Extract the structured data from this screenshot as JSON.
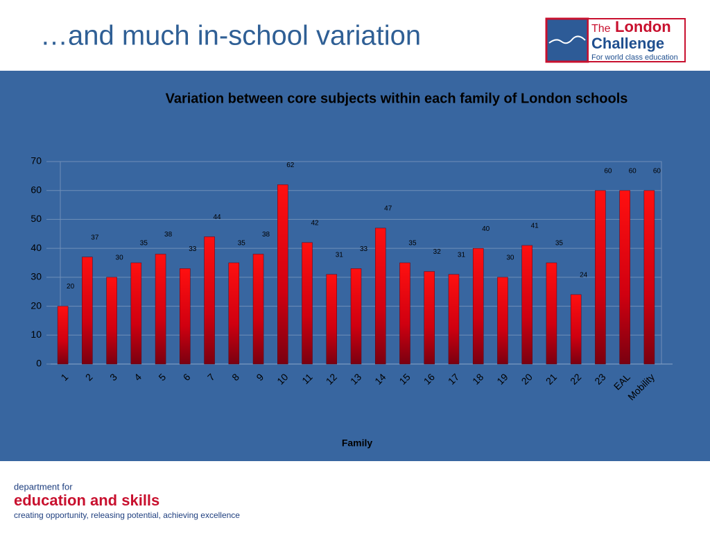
{
  "slide": {
    "title": "…and much in-school variation",
    "logo": {
      "the": "The",
      "london": "London",
      "challenge": "Challenge",
      "tagline": "For world class education"
    },
    "footer": {
      "line1": "department for",
      "line2": "education and skills",
      "line3": "creating opportunity, releasing potential, achieving excellence"
    }
  },
  "chart_data": {
    "type": "bar",
    "title": "Variation between core subjects within each family of London schools",
    "x_label": "Family",
    "categories": [
      "1",
      "2",
      "3",
      "4",
      "5",
      "6",
      "7",
      "8",
      "9",
      "10",
      "11",
      "12",
      "13",
      "14",
      "15",
      "16",
      "17",
      "18",
      "19",
      "20",
      "21",
      "22",
      "23",
      "EAL",
      "Mobility"
    ],
    "values": [
      20,
      37,
      30,
      35,
      38,
      33,
      44,
      35,
      38,
      62,
      42,
      31,
      33,
      47,
      35,
      32,
      31,
      40,
      30,
      41,
      35,
      24,
      60,
      60,
      60
    ],
    "color": "#e8000a",
    "ylim": [
      0,
      70
    ],
    "yticks": [
      0,
      10,
      20,
      30,
      40,
      50,
      60,
      70
    ],
    "grid": true
  }
}
